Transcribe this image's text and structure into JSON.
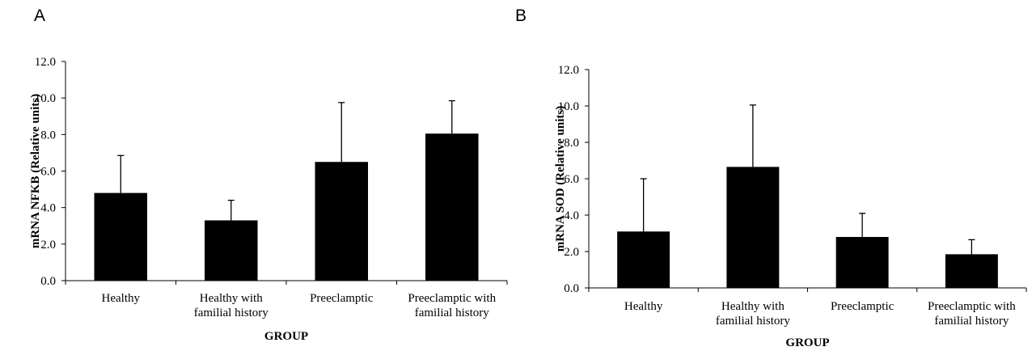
{
  "panels": [
    {
      "letter": "A"
    },
    {
      "letter": "B"
    }
  ],
  "chart_data": [
    {
      "type": "bar",
      "title": "",
      "categories": [
        [
          "Healthy"
        ],
        [
          "Healthy with",
          "familial history"
        ],
        [
          "Preeclamptic"
        ],
        [
          "Preeclamptic with",
          "familial history"
        ]
      ],
      "values": [
        4.8,
        3.3,
        6.5,
        8.05
      ],
      "error_upper": [
        6.85,
        4.4,
        9.75,
        9.85
      ],
      "ylim": [
        0,
        12
      ],
      "yticks": [
        "0.0",
        "2.0",
        "4.0",
        "6.0",
        "8.0",
        "10.0",
        "12.0"
      ],
      "ylabel": "mRNA NFKB (Relative units)",
      "xlabel": "GROUP",
      "bar_color": "#000000",
      "grid": false
    },
    {
      "type": "bar",
      "title": "",
      "categories": [
        [
          "Healthy"
        ],
        [
          "Healthy with",
          "familial history"
        ],
        [
          "Preeclamptic"
        ],
        [
          "Preeclamptic with",
          "familial history"
        ]
      ],
      "values": [
        3.1,
        6.65,
        2.8,
        1.85
      ],
      "error_upper": [
        6.0,
        10.05,
        4.1,
        2.65
      ],
      "ylim": [
        0,
        12
      ],
      "yticks": [
        "0.0",
        "2.0",
        "4.0",
        "6.0",
        "8.0",
        "10.0",
        "12.0"
      ],
      "ylabel": "mRNA SOD (Relative units)",
      "xlabel": "GROUP",
      "bar_color": "#000000",
      "grid": false
    }
  ]
}
